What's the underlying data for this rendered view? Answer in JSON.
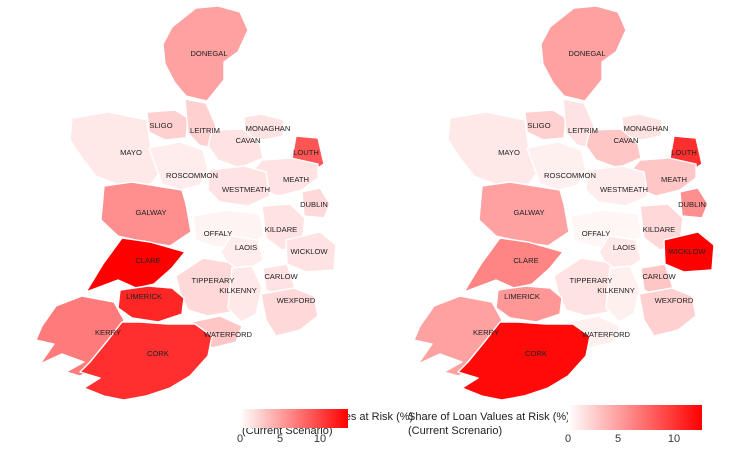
{
  "scale_min_color": "#ffffff",
  "scale_max_color": "#ff0000",
  "maps": [
    {
      "legend": {
        "title_line1": "Share of Loan Volumes at Risk (%)",
        "title_line2": "(Current Scenario)",
        "ticks": [
          "0",
          "5",
          "10"
        ],
        "min": 0,
        "max": 13.5
      },
      "counties": [
        {
          "name": "DONEGAL",
          "value": 5.0
        },
        {
          "name": "SLIGO",
          "value": 2.5
        },
        {
          "name": "LEITRIM",
          "value": 2.5
        },
        {
          "name": "MONAGHAN",
          "value": 1.5
        },
        {
          "name": "MAYO",
          "value": 1.2
        },
        {
          "name": "CAVAN",
          "value": 1.5
        },
        {
          "name": "LOUTH",
          "value": 9.0
        },
        {
          "name": "ROSCOMMON",
          "value": 1.0
        },
        {
          "name": "MEATH",
          "value": 1.5
        },
        {
          "name": "WESTMEATH",
          "value": 1.5
        },
        {
          "name": "DUBLIN",
          "value": 2.0
        },
        {
          "name": "GALWAY",
          "value": 6.0
        },
        {
          "name": "KILDARE",
          "value": 1.5
        },
        {
          "name": "OFFALY",
          "value": 0.6
        },
        {
          "name": "LAOIS",
          "value": 1.0
        },
        {
          "name": "WICKLOW",
          "value": 1.5
        },
        {
          "name": "CLARE",
          "value": 13.5
        },
        {
          "name": "TIPPERARY",
          "value": 2.0
        },
        {
          "name": "CARLOW",
          "value": 1.5
        },
        {
          "name": "LIMERICK",
          "value": 11.5
        },
        {
          "name": "KILKENNY",
          "value": 1.2
        },
        {
          "name": "WEXFORD",
          "value": 2.0
        },
        {
          "name": "KERRY",
          "value": 7.0
        },
        {
          "name": "WATERFORD",
          "value": 3.0
        },
        {
          "name": "CORK",
          "value": 11.0
        }
      ]
    },
    {
      "legend": {
        "title_line1": "Share of Loan Values at Risk (%)",
        "title_line2": "(Current Screnario)",
        "ticks": [
          "0",
          "5",
          "10"
        ],
        "min": 0,
        "max": 13.5
      },
      "counties": [
        {
          "name": "DONEGAL",
          "value": 5.0
        },
        {
          "name": "SLIGO",
          "value": 2.5
        },
        {
          "name": "LEITRIM",
          "value": 1.5
        },
        {
          "name": "MONAGHAN",
          "value": 1.5
        },
        {
          "name": "MAYO",
          "value": 1.2
        },
        {
          "name": "CAVAN",
          "value": 3.0
        },
        {
          "name": "LOUTH",
          "value": 11.0
        },
        {
          "name": "ROSCOMMON",
          "value": 0.8
        },
        {
          "name": "MEATH",
          "value": 3.0
        },
        {
          "name": "WESTMEATH",
          "value": 1.0
        },
        {
          "name": "DUBLIN",
          "value": 6.0
        },
        {
          "name": "GALWAY",
          "value": 5.0
        },
        {
          "name": "KILDARE",
          "value": 2.0
        },
        {
          "name": "OFFALY",
          "value": 0.5
        },
        {
          "name": "LAOIS",
          "value": 1.2
        },
        {
          "name": "WICKLOW",
          "value": 13.5
        },
        {
          "name": "CLARE",
          "value": 6.5
        },
        {
          "name": "TIPPERARY",
          "value": 1.5
        },
        {
          "name": "CARLOW",
          "value": 3.0
        },
        {
          "name": "LIMERICK",
          "value": 5.5
        },
        {
          "name": "KILKENNY",
          "value": 0.8
        },
        {
          "name": "WEXFORD",
          "value": 2.5
        },
        {
          "name": "KERRY",
          "value": 5.0
        },
        {
          "name": "WATERFORD",
          "value": 0.8
        },
        {
          "name": "CORK",
          "value": 13.0
        }
      ]
    }
  ]
}
